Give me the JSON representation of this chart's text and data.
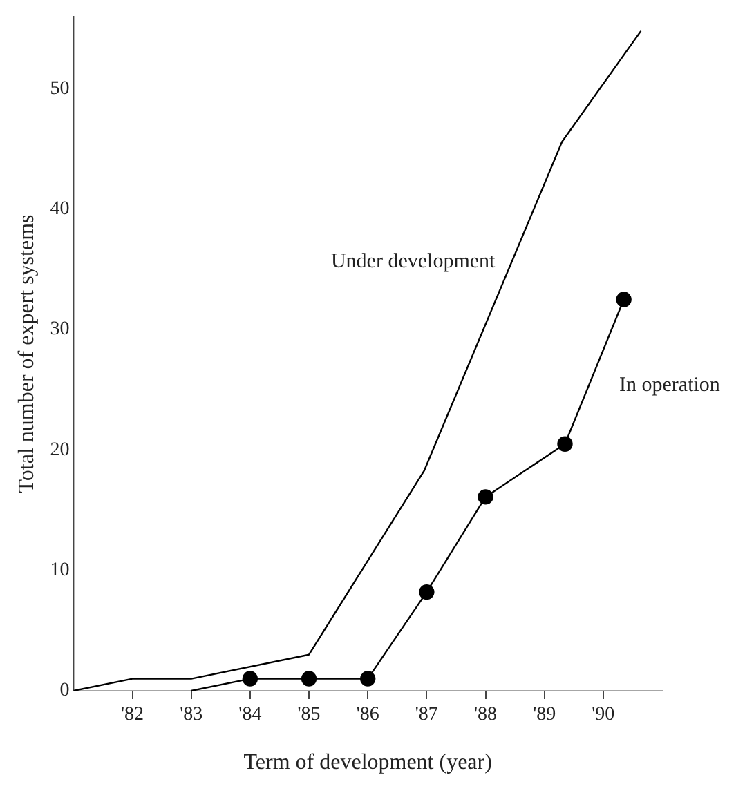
{
  "chart_data": {
    "type": "line",
    "xlabel": "Term of development (year)",
    "ylabel": "Total number of expert systems",
    "xlim": [
      81,
      91
    ],
    "xticks": [
      {
        "value": 82,
        "label": "'82"
      },
      {
        "value": 83,
        "label": "'83"
      },
      {
        "value": 84,
        "label": "'84"
      },
      {
        "value": 85,
        "label": "'85"
      },
      {
        "value": 86,
        "label": "'86"
      },
      {
        "value": 87,
        "label": "'87"
      },
      {
        "value": 88,
        "label": "'88"
      },
      {
        "value": 89,
        "label": "'89"
      },
      {
        "value": 90,
        "label": "'90"
      }
    ],
    "ylim": [
      0,
      56
    ],
    "yticks": [
      0,
      10,
      20,
      30,
      40,
      50
    ],
    "grid": false,
    "legend": false,
    "series": [
      {
        "name": "Under development",
        "color": "#000000",
        "marker": "none",
        "x": [
          81,
          82,
          83,
          85,
          86.96,
          89.3,
          90.64
        ],
        "values": [
          0,
          1,
          1,
          3,
          18.3,
          45.6,
          54.8
        ]
      },
      {
        "name": "In operation",
        "color": "#000000",
        "marker": "circle",
        "x": [
          83,
          84,
          85,
          86,
          87,
          88,
          89.35,
          90.35
        ],
        "values": [
          0,
          1,
          1,
          1,
          8.2,
          16.1,
          20.5,
          32.5
        ]
      }
    ]
  }
}
